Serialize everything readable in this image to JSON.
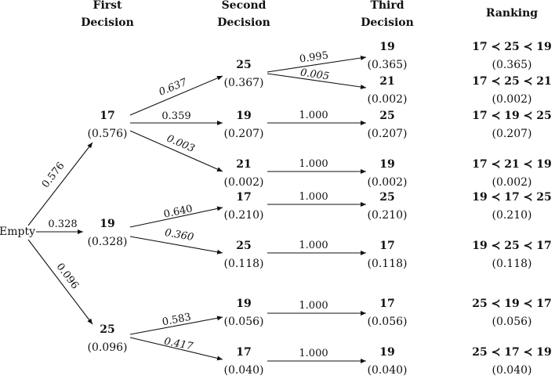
{
  "headers": {
    "first": [
      "First",
      "Decision"
    ],
    "second": [
      "Second",
      "Decision"
    ],
    "third": [
      "Third",
      "Decision"
    ],
    "ranking": "Ranking"
  },
  "root": "Empty",
  "level1": [
    {
      "label": "17",
      "prob": "(0.576)"
    },
    {
      "label": "19",
      "prob": "(0.328)"
    },
    {
      "label": "25",
      "prob": "(0.096)"
    }
  ],
  "level2": [
    {
      "label": "25",
      "prob": "(0.367)"
    },
    {
      "label": "19",
      "prob": "(0.207)"
    },
    {
      "label": "21",
      "prob": "(0.002)"
    },
    {
      "label": "17",
      "prob": "(0.210)"
    },
    {
      "label": "25",
      "prob": "(0.118)"
    },
    {
      "label": "19",
      "prob": "(0.056)"
    },
    {
      "label": "17",
      "prob": "(0.040)"
    }
  ],
  "level3": [
    {
      "label": "19",
      "prob": "(0.365)"
    },
    {
      "label": "21",
      "prob": "(0.002)"
    },
    {
      "label": "25",
      "prob": "(0.207)"
    },
    {
      "label": "19",
      "prob": "(0.002)"
    },
    {
      "label": "25",
      "prob": "(0.210)"
    },
    {
      "label": "17",
      "prob": "(0.118)"
    },
    {
      "label": "17",
      "prob": "(0.056)"
    },
    {
      "label": "19",
      "prob": "(0.040)"
    }
  ],
  "rankings": [
    {
      "order": "17 ≺ 25 ≺ 19",
      "prob": "(0.365)"
    },
    {
      "order": "17 ≺ 25 ≺ 21",
      "prob": "(0.002)"
    },
    {
      "order": "17 ≺ 19 ≺ 25",
      "prob": "(0.207)"
    },
    {
      "order": "17 ≺ 21 ≺ 19",
      "prob": "(0.002)"
    },
    {
      "order": "19 ≺ 17 ≺ 25",
      "prob": "(0.210)"
    },
    {
      "order": "19 ≺ 25 ≺ 17",
      "prob": "(0.118)"
    },
    {
      "order": "25 ≺ 19 ≺ 17",
      "prob": "(0.056)"
    },
    {
      "order": "25 ≺ 17 ≺ 19",
      "prob": "(0.040)"
    }
  ],
  "edges": {
    "root_to_17": "0.576",
    "root_to_19": "0.328",
    "root_to_25": "0.096",
    "n17_to_25": "0.637",
    "n17_to_19": "0.359",
    "n17_to_21": "0.003",
    "n19_to_17": "0.640",
    "n19_to_25": "0.360",
    "n25_to_19": "0.583",
    "n25_to_17": "0.417",
    "n17_25_to_19": "0.995",
    "n17_25_to_21": "0.005",
    "n17_19_to_25": "1.000",
    "n17_21_to_19": "1.000",
    "n19_17_to_25": "1.000",
    "n19_25_to_17": "1.000",
    "n25_19_to_17": "1.000",
    "n25_17_to_19": "1.000"
  }
}
